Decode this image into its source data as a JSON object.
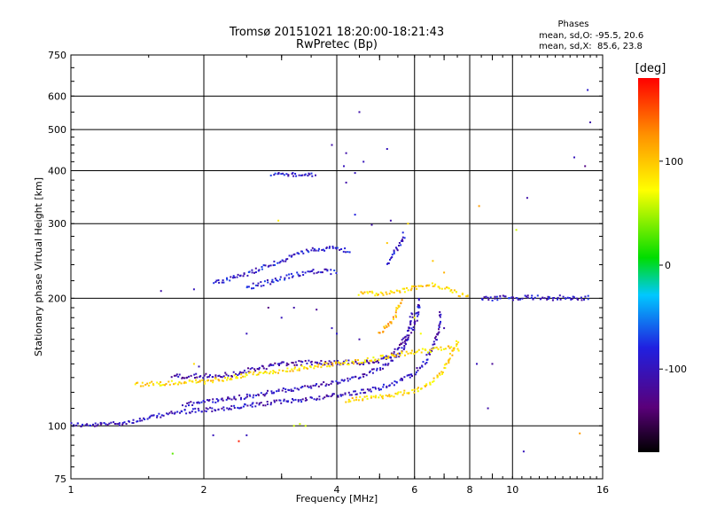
{
  "chart_data": {
    "type": "scatter",
    "title": "Tromsø 20151021 18:20:00-18:21:43",
    "subtitle": "RwPretec (Bp)",
    "xlabel": "Frequency [MHz]",
    "ylabel": "Stationary phase Virtual Height [km]",
    "x_scale": "log",
    "y_scale": "log",
    "xlim": [
      1,
      16
    ],
    "ylim": [
      75,
      750
    ],
    "x_ticks": [
      1,
      2,
      4,
      6,
      8,
      10,
      16
    ],
    "x_tick_labels": [
      "1",
      "2",
      "4",
      "6",
      "8",
      "10",
      "16"
    ],
    "x_minor_ticks": [
      3,
      5,
      7,
      9
    ],
    "y_ticks": [
      75,
      100,
      200,
      300,
      400,
      500,
      600,
      750
    ],
    "y_tick_labels": [
      "75",
      "100",
      "200",
      "300",
      "400",
      "500",
      "600",
      "750"
    ],
    "grid": true,
    "phase_info": {
      "title": "Phases",
      "line1": "mean, sd,O: -95.5, 20.6",
      "line2": "mean, sd,X:  85.6, 23.8"
    },
    "colorbar": {
      "label": "[deg]",
      "range": [
        -180,
        180
      ],
      "ticks": [
        100,
        0,
        -100
      ],
      "tick_labels": [
        "100",
        "0",
        "-100"
      ],
      "colors": [
        "#000000",
        "#5a007a",
        "#2020e0",
        "#00c8ff",
        "#00dd00",
        "#ffff00",
        "#ff9000",
        "#ff0000"
      ]
    },
    "traces": [
      {
        "phase": -100,
        "points": [
          [
            1.0,
            101
          ],
          [
            1.1,
            100
          ],
          [
            1.2,
            101
          ],
          [
            1.35,
            102
          ],
          [
            1.5,
            104
          ],
          [
            1.6,
            106
          ],
          [
            1.8,
            108
          ],
          [
            2.0,
            109
          ],
          [
            2.3,
            110
          ],
          [
            2.6,
            112
          ],
          [
            3.0,
            114
          ],
          [
            3.5,
            116
          ],
          [
            4.0,
            118
          ],
          [
            4.5,
            120
          ],
          [
            5.0,
            123
          ],
          [
            5.5,
            127
          ],
          [
            6.0,
            133
          ],
          [
            6.3,
            140
          ],
          [
            6.6,
            152
          ],
          [
            6.8,
            168
          ],
          [
            6.9,
            185
          ]
        ]
      },
      {
        "phase": -100,
        "points": [
          [
            1.8,
            112
          ],
          [
            2.0,
            114
          ],
          [
            2.3,
            116
          ],
          [
            2.6,
            118
          ],
          [
            3.0,
            121
          ],
          [
            3.5,
            124
          ],
          [
            4.0,
            127
          ],
          [
            4.5,
            131
          ],
          [
            5.0,
            136
          ],
          [
            5.3,
            141
          ],
          [
            5.6,
            150
          ],
          [
            5.8,
            160
          ],
          [
            6.0,
            172
          ],
          [
            6.1,
            185
          ],
          [
            6.15,
            200
          ]
        ]
      },
      {
        "phase": -110,
        "points": [
          [
            1.7,
            131
          ],
          [
            2.0,
            131
          ],
          [
            2.3,
            132
          ],
          [
            2.6,
            136
          ],
          [
            3.0,
            140
          ],
          [
            3.5,
            141
          ],
          [
            4.0,
            141
          ],
          [
            4.5,
            141
          ],
          [
            5.0,
            142
          ],
          [
            5.3,
            146
          ],
          [
            5.6,
            155
          ],
          [
            5.8,
            168
          ],
          [
            5.95,
            185
          ]
        ]
      },
      {
        "phase": -90,
        "points": [
          [
            2.1,
            218
          ],
          [
            2.3,
            222
          ],
          [
            2.6,
            232
          ],
          [
            3.0,
            245
          ],
          [
            3.3,
            255
          ],
          [
            3.6,
            262
          ],
          [
            4.0,
            262
          ],
          [
            4.3,
            258
          ]
        ]
      },
      {
        "phase": -90,
        "points": [
          [
            2.5,
            212
          ],
          [
            2.8,
            218
          ],
          [
            3.1,
            225
          ],
          [
            3.4,
            230
          ],
          [
            3.7,
            232
          ],
          [
            4.0,
            230
          ]
        ]
      },
      {
        "phase": 90,
        "points": [
          [
            1.4,
            125
          ],
          [
            1.6,
            126
          ],
          [
            1.8,
            127
          ],
          [
            2.0,
            127
          ],
          [
            2.3,
            130
          ],
          [
            2.6,
            133
          ],
          [
            3.0,
            135
          ],
          [
            3.5,
            138
          ],
          [
            4.0,
            140
          ],
          [
            4.5,
            142
          ],
          [
            5.0,
            145
          ],
          [
            5.6,
            148
          ],
          [
            6.2,
            150
          ],
          [
            6.6,
            151
          ],
          [
            7.0,
            152
          ],
          [
            7.3,
            153
          ],
          [
            7.6,
            152
          ]
        ]
      },
      {
        "phase": 90,
        "points": [
          [
            4.2,
            115
          ],
          [
            4.6,
            116
          ],
          [
            5.0,
            117
          ],
          [
            5.5,
            119
          ],
          [
            6.0,
            121
          ],
          [
            6.3,
            123
          ],
          [
            6.6,
            127
          ],
          [
            6.9,
            133
          ],
          [
            7.1,
            140
          ],
          [
            7.3,
            148
          ],
          [
            7.45,
            155
          ],
          [
            7.55,
            160
          ]
        ]
      },
      {
        "phase": 90,
        "points": [
          [
            4.5,
            205
          ],
          [
            5.0,
            205
          ],
          [
            5.5,
            208
          ],
          [
            6.0,
            212
          ],
          [
            6.5,
            215
          ],
          [
            7.0,
            212
          ],
          [
            7.5,
            205
          ],
          [
            8.0,
            200
          ]
        ]
      },
      {
        "phase": 110,
        "points": [
          [
            5.0,
            165
          ],
          [
            5.2,
            172
          ],
          [
            5.4,
            180
          ],
          [
            5.5,
            190
          ],
          [
            5.6,
            200
          ]
        ]
      },
      {
        "phase": -95,
        "points": [
          [
            8.5,
            200
          ],
          [
            9.0,
            200
          ],
          [
            9.5,
            201
          ],
          [
            10.0,
            200
          ],
          [
            11.0,
            201
          ],
          [
            12.0,
            200
          ],
          [
            13.0,
            201
          ],
          [
            14.0,
            200
          ],
          [
            15.0,
            201
          ]
        ]
      },
      {
        "phase": -95,
        "points": [
          [
            5.2,
            240
          ],
          [
            5.4,
            255
          ],
          [
            5.6,
            270
          ],
          [
            5.7,
            285
          ]
        ]
      },
      {
        "phase": -90,
        "points": [
          [
            2.85,
            390
          ],
          [
            3.0,
            392
          ],
          [
            3.2,
            392
          ],
          [
            3.4,
            391
          ],
          [
            3.6,
            392
          ]
        ]
      }
    ],
    "scatter_points": [
      [
        4.5,
        550,
        -110
      ],
      [
        3.9,
        460,
        -110
      ],
      [
        5.2,
        450,
        -100
      ],
      [
        4.2,
        440,
        -110
      ],
      [
        4.15,
        410,
        -100
      ],
      [
        4.6,
        420,
        -100
      ],
      [
        4.4,
        395,
        -100
      ],
      [
        4.2,
        375,
        -110
      ],
      [
        4.4,
        315,
        -80
      ],
      [
        4.8,
        298,
        -110
      ],
      [
        5.3,
        305,
        -110
      ],
      [
        5.8,
        300,
        90
      ],
      [
        8.4,
        330,
        120
      ],
      [
        10.8,
        345,
        -110
      ],
      [
        14.8,
        620,
        -90
      ],
      [
        15.0,
        520,
        -110
      ],
      [
        14.6,
        410,
        -130
      ],
      [
        13.8,
        430,
        -100
      ],
      [
        10.2,
        290,
        60
      ],
      [
        3.0,
        180,
        -100
      ],
      [
        2.8,
        190,
        -130
      ],
      [
        3.6,
        188,
        -120
      ],
      [
        2.5,
        165,
        -100
      ],
      [
        1.9,
        140,
        90
      ],
      [
        1.95,
        138,
        -100
      ],
      [
        1.6,
        208,
        -110
      ],
      [
        1.9,
        210,
        -100
      ],
      [
        2.95,
        305,
        80
      ],
      [
        3.2,
        190,
        -110
      ],
      [
        3.3,
        101,
        60
      ],
      [
        3.4,
        100,
        60
      ],
      [
        3.2,
        100,
        60
      ],
      [
        2.1,
        95,
        -100
      ],
      [
        2.5,
        95,
        -100
      ],
      [
        2.4,
        92,
        170
      ],
      [
        1.7,
        86,
        30
      ],
      [
        8.8,
        110,
        -110
      ],
      [
        9.0,
        140,
        -120
      ],
      [
        7.0,
        170,
        -110
      ],
      [
        4.5,
        160,
        -110
      ],
      [
        4.0,
        165,
        -90
      ],
      [
        3.9,
        170,
        -100
      ],
      [
        8.3,
        140,
        -100
      ],
      [
        6.2,
        165,
        70
      ],
      [
        6.0,
        180,
        70
      ],
      [
        7.0,
        230,
        110
      ],
      [
        6.6,
        245,
        100
      ],
      [
        5.2,
        270,
        100
      ],
      [
        14.2,
        96,
        120
      ],
      [
        10.6,
        87,
        -100
      ]
    ]
  }
}
